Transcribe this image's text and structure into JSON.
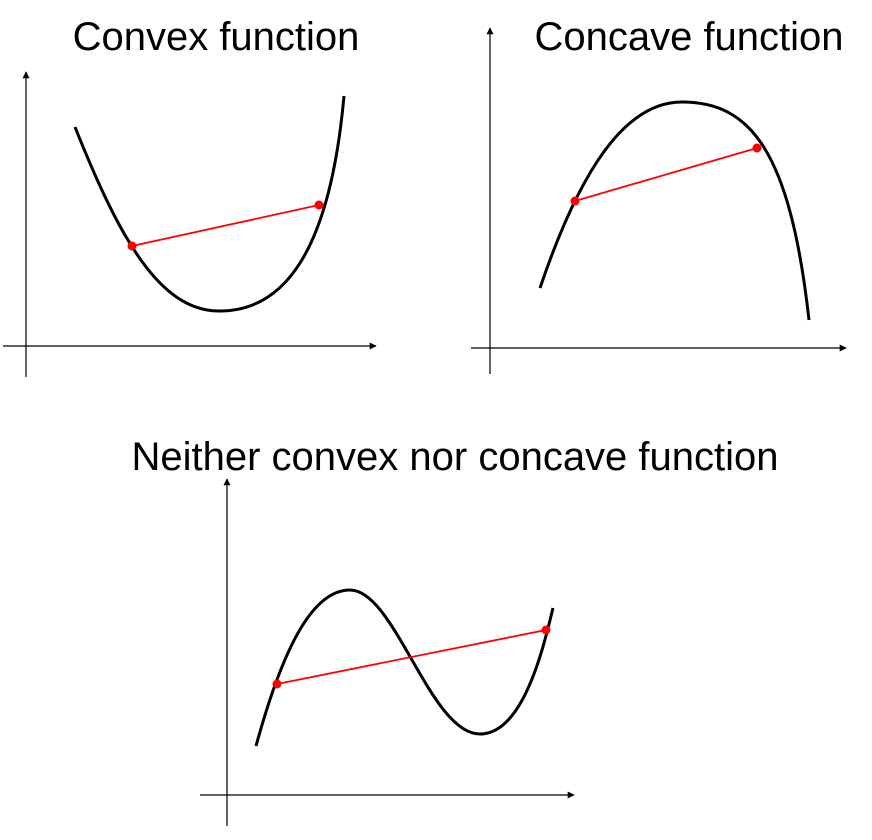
{
  "titles": {
    "convex": "Convex function",
    "concave": "Concave function",
    "neither": "Neither convex nor concave function"
  },
  "colors": {
    "curve": "#000000",
    "axis": "#000000",
    "chord": "#ff0000",
    "point": "#ff0000",
    "background": "#ffffff"
  }
}
